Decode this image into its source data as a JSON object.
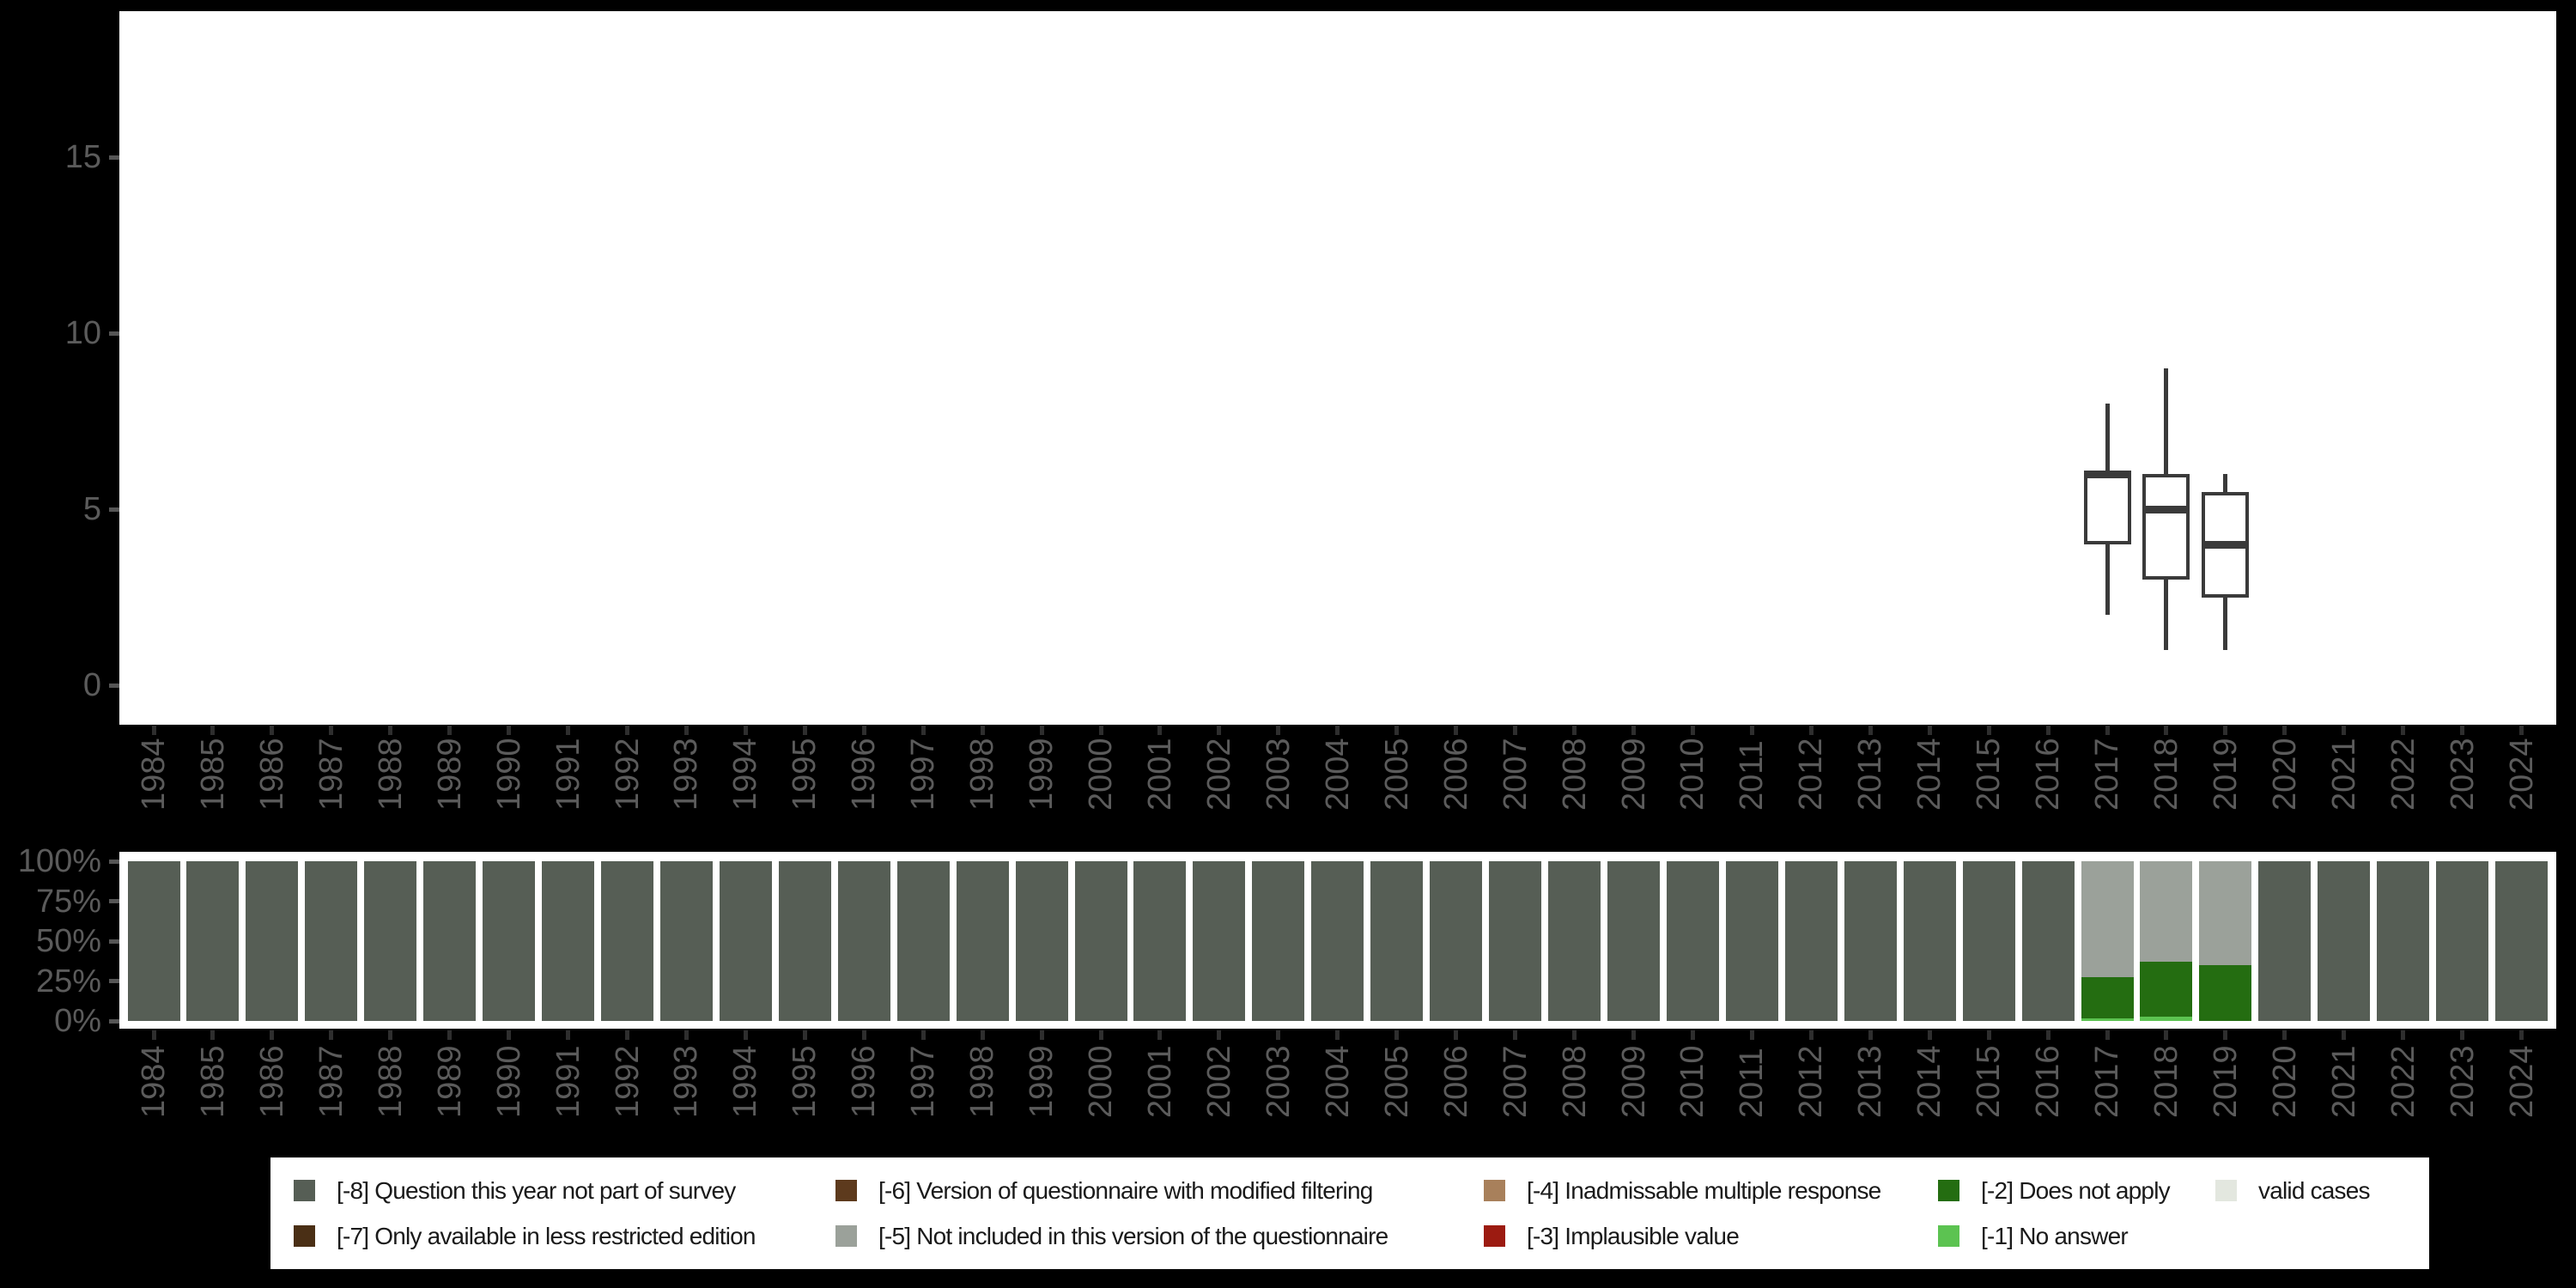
{
  "page": {
    "background_color": "#000000",
    "panel_color": "#ffffff",
    "axis_text_color": "#5b5b5b",
    "box_outline_color": "#3a3a3a"
  },
  "years": [
    "1984",
    "1985",
    "1986",
    "1987",
    "1988",
    "1989",
    "1990",
    "1991",
    "1992",
    "1993",
    "1994",
    "1995",
    "1996",
    "1997",
    "1998",
    "1999",
    "2000",
    "2001",
    "2002",
    "2003",
    "2004",
    "2005",
    "2006",
    "2007",
    "2008",
    "2009",
    "2010",
    "2011",
    "2012",
    "2013",
    "2014",
    "2015",
    "2016",
    "2017",
    "2018",
    "2019",
    "2020",
    "2021",
    "2022",
    "2023",
    "2024"
  ],
  "chart_data": [
    {
      "type": "boxplot",
      "title": "",
      "xlabel": "",
      "ylabel": "",
      "ylim": [
        -1.1,
        19.1
      ],
      "grid": false,
      "y_ticks": [
        {
          "value": 0,
          "label": "0"
        },
        {
          "value": 5,
          "label": "5"
        },
        {
          "value": 10,
          "label": "10"
        },
        {
          "value": 15,
          "label": "15"
        }
      ],
      "boxes": [
        {
          "year": "2017",
          "whisker_low": 2,
          "q1": 4,
          "median": 6,
          "q3": 6,
          "whisker_high": 8
        },
        {
          "year": "2018",
          "whisker_low": 1,
          "q1": 3,
          "median": 5,
          "q3": 6,
          "whisker_high": 9
        },
        {
          "year": "2019",
          "whisker_low": 1,
          "q1": 2.5,
          "median": 4,
          "q3": 5.5,
          "whisker_high": 6
        }
      ]
    },
    {
      "type": "bar",
      "subtype": "stacked-percent",
      "title": "",
      "xlabel": "",
      "ylabel": "",
      "ylim_pct": [
        0,
        100
      ],
      "grid": false,
      "y_ticks": [
        {
          "pct": 0,
          "label": "0%"
        },
        {
          "pct": 25,
          "label": "25%"
        },
        {
          "pct": 50,
          "label": "50%"
        },
        {
          "pct": 75,
          "label": "75%"
        },
        {
          "pct": 100,
          "label": "100%"
        }
      ],
      "stack_order_bottom_to_top": [
        "valid_cases",
        "no_answer",
        "does_not_apply",
        "implausible_value",
        "inadmissable_multiple_response",
        "not_included_in_version",
        "modified_filtering",
        "less_restricted_edition",
        "not_part_of_survey"
      ],
      "default_composition_pct": {
        "not_part_of_survey": 100
      },
      "composition_by_year_pct": {
        "2017": {
          "no_answer": 1.6,
          "does_not_apply": 25.8,
          "not_included_in_version": 72.6
        },
        "2018": {
          "no_answer": 2.7,
          "does_not_apply": 34.4,
          "not_included_in_version": 62.9
        },
        "2019": {
          "does_not_apply": 35.0,
          "not_included_in_version": 65.0
        }
      }
    }
  ],
  "legend": {
    "items": [
      {
        "key": "not_part_of_survey",
        "label": "[-8] Question this year not part of survey",
        "color": "#565e55"
      },
      {
        "key": "less_restricted_edition",
        "label": "[-7] Only available in less restricted edition",
        "color": "#4a2f15"
      },
      {
        "key": "modified_filtering",
        "label": "[-6] Version of questionnaire with modified filtering",
        "color": "#5d3a1d"
      },
      {
        "key": "not_included_in_version",
        "label": "[-5] Not included in this version of the questionnaire",
        "color": "#9ba19a"
      },
      {
        "key": "inadmissable_multiple_response",
        "label": "[-4] Inadmissable multiple response",
        "color": "#a8805b"
      },
      {
        "key": "implausible_value",
        "label": "[-3] Implausible value",
        "color": "#9c1b11"
      },
      {
        "key": "does_not_apply",
        "label": "[-2] Does not apply",
        "color": "#246d11"
      },
      {
        "key": "no_answer",
        "label": "[-1] No answer",
        "color": "#5cc351"
      },
      {
        "key": "valid_cases",
        "label": "valid cases",
        "color": "#e3e7df"
      }
    ]
  }
}
